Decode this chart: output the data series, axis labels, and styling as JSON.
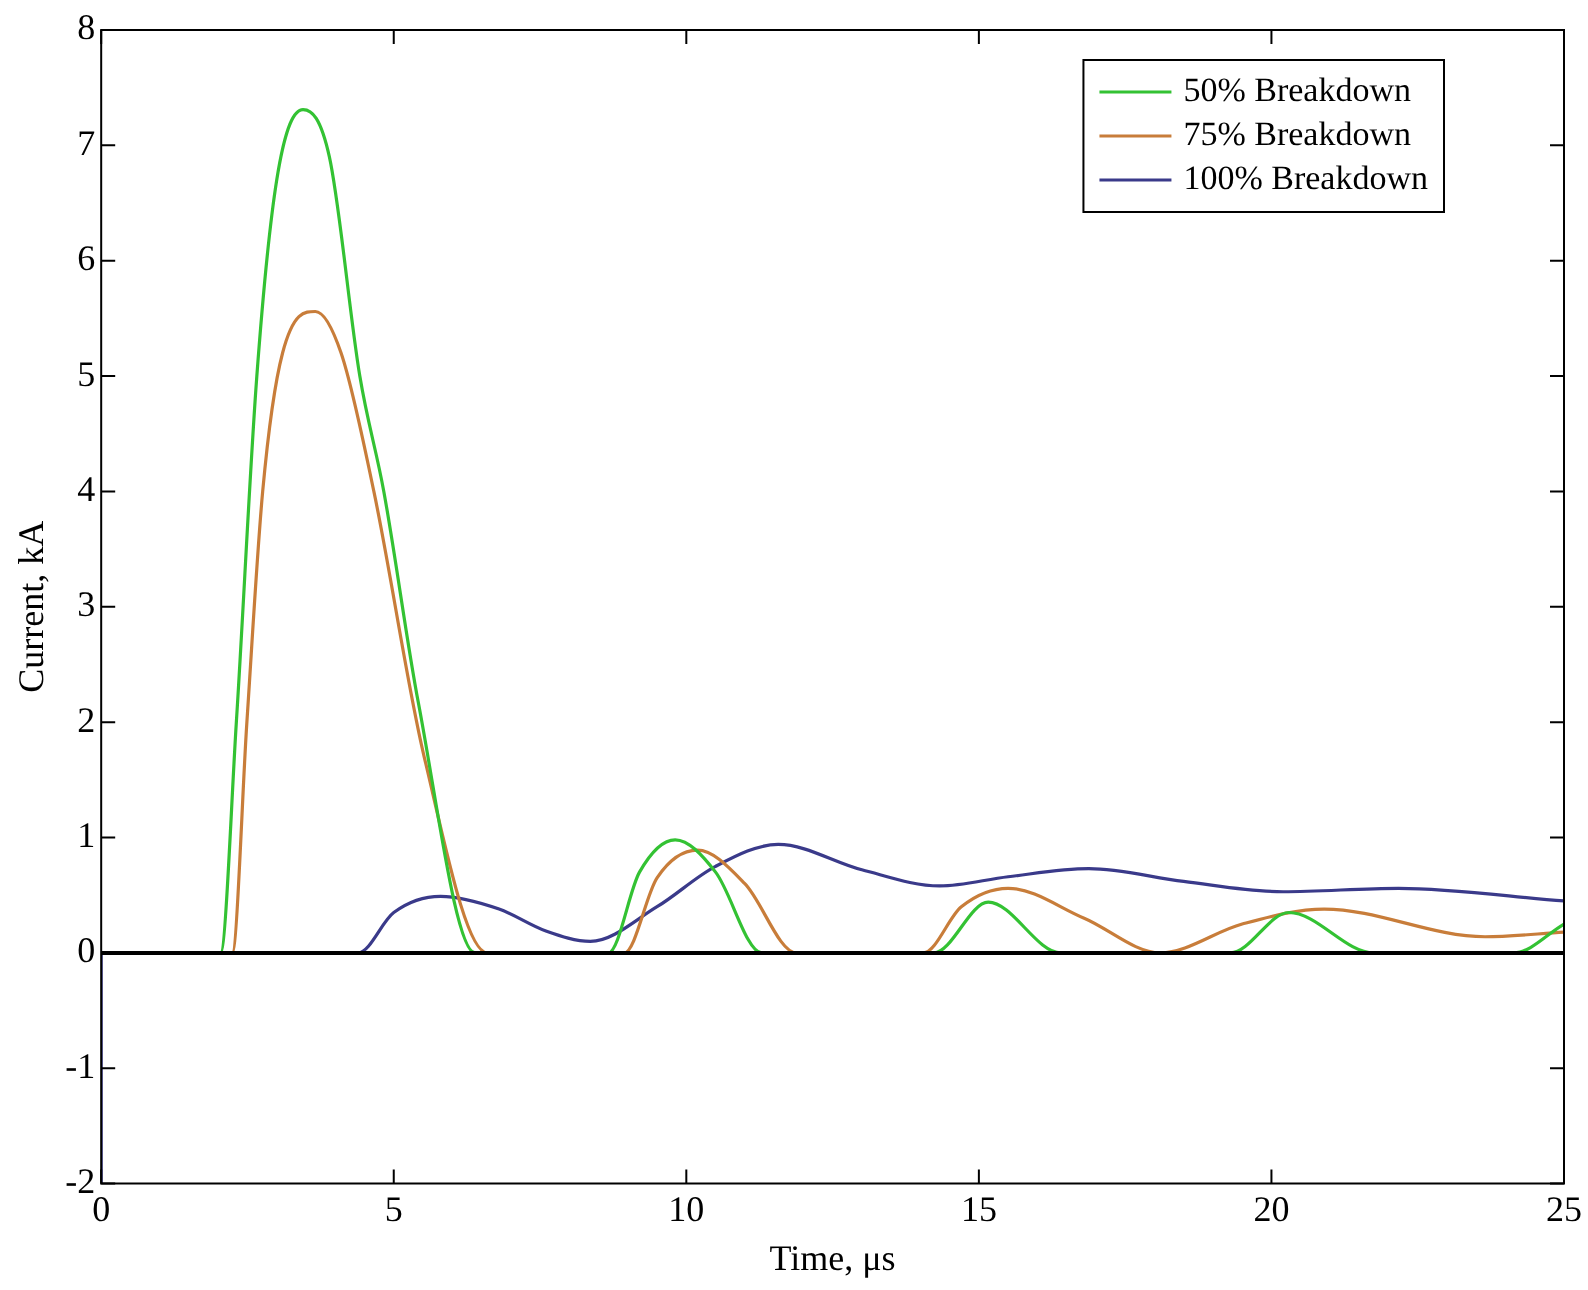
{
  "chart_data": {
    "type": "line",
    "xlabel": "Time, μs",
    "ylabel": "Current, kA",
    "xlim": [
      0,
      25
    ],
    "xticks": [
      0,
      5,
      10,
      15,
      20,
      25
    ],
    "ylim": [
      -2,
      8
    ],
    "yticks": [
      -2,
      -1,
      0,
      1,
      2,
      3,
      4,
      5,
      6,
      7,
      8
    ],
    "grid": false,
    "legend": "top right",
    "marker": "none",
    "line_style": "solid",
    "ref_lines": [
      {
        "axis": "y",
        "value": 0,
        "color": "#000000"
      }
    ],
    "series": [
      {
        "name": "50% Breakdown",
        "color": "#33c233",
        "x": [
          0,
          2.04,
          2.31,
          2.66,
          3.0,
          3.45,
          3.9,
          4.42,
          4.83,
          5.42,
          6.39,
          8.67,
          9.2,
          9.81,
          10.5,
          11.29,
          14.23,
          15.16,
          16.4,
          19.3,
          20.3,
          21.75,
          24.14,
          25
        ],
        "values": [
          0,
          0,
          2,
          5,
          6.7,
          7.31,
          6.9,
          5,
          4,
          2.17,
          0,
          0,
          0.7,
          0.98,
          0.7,
          0,
          0,
          0.44,
          0,
          0,
          0.35,
          0,
          0,
          0.25
        ]
      },
      {
        "name": "75% Breakdown",
        "color": "#c87d3a",
        "x": [
          0,
          2.24,
          2.49,
          2.76,
          3.1,
          3.66,
          4.1,
          4.66,
          5.52,
          6.6,
          8.94,
          9.5,
          10.19,
          11,
          11.88,
          14.05,
          14.7,
          15.5,
          16.8,
          18.1,
          19.5,
          20.9,
          23.65,
          25
        ],
        "values": [
          0,
          0,
          2,
          4,
          5.2,
          5.56,
          5.2,
          4,
          1.7,
          0,
          0,
          0.65,
          0.89,
          0.6,
          0,
          0,
          0.4,
          0.56,
          0.3,
          0,
          0.25,
          0.38,
          0.14,
          0.18
        ]
      },
      {
        "name": "100% Breakdown",
        "color": "#3a3a8a",
        "x": [
          0,
          0,
          4.39,
          5.0,
          5.8,
          6.8,
          7.6,
          8.36,
          9.5,
          10.5,
          11.57,
          13,
          14.33,
          15.5,
          16.88,
          18.5,
          20.2,
          22.17,
          25
        ],
        "values": [
          -2,
          0,
          0,
          0.35,
          0.49,
          0.38,
          0.19,
          0.1,
          0.4,
          0.75,
          0.94,
          0.72,
          0.58,
          0.66,
          0.73,
          0.62,
          0.53,
          0.56,
          0.45
        ]
      }
    ]
  }
}
